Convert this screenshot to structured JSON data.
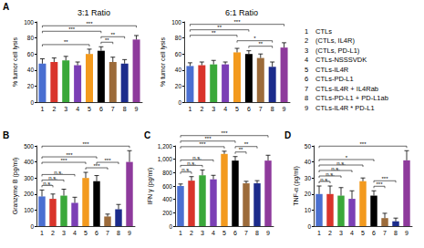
{
  "chart_data": [
    {
      "type": "bar",
      "title": "3:1 Ratio",
      "y_label": "% tumor cell lysis",
      "categories": [
        "1",
        "2",
        "3",
        "4",
        "5",
        "6",
        "7",
        "8",
        "9"
      ],
      "values": [
        48,
        50,
        52,
        46,
        60,
        64,
        50,
        48,
        78
      ],
      "errors": [
        6,
        5,
        5,
        4,
        6,
        5,
        6,
        5,
        5
      ],
      "colors": [
        "#4a6fd1",
        "#d9342b",
        "#3aa83a",
        "#7b3fb5",
        "#f39a1e",
        "#000000",
        "#9c6b3a",
        "#1c2c8c",
        "#8e3a9c"
      ],
      "ylim": [
        0,
        100
      ],
      "yticks": [
        0,
        20,
        40,
        60,
        80,
        100
      ],
      "grid": false,
      "data_labels": false,
      "brackets": [
        {
          "from": "6",
          "to": "7",
          "label": "**"
        },
        {
          "from": "6",
          "to": "8",
          "label": "**"
        },
        {
          "from": "1",
          "to": "5",
          "label": "**"
        },
        {
          "from": "1",
          "to": "6",
          "label": "***"
        },
        {
          "from": "1",
          "to": "9",
          "label": "***"
        }
      ]
    },
    {
      "type": "bar",
      "title": "6:1 Ratio",
      "y_label": "% tumor cell lysis",
      "categories": [
        "1",
        "2",
        "3",
        "4",
        "5",
        "6",
        "7",
        "8",
        "9"
      ],
      "values": [
        45,
        46,
        47,
        47,
        62,
        60,
        55,
        44,
        68
      ],
      "errors": [
        4,
        4,
        5,
        3,
        5,
        4,
        5,
        6,
        6
      ],
      "colors": [
        "#4a6fd1",
        "#d9342b",
        "#3aa83a",
        "#7b3fb5",
        "#f39a1e",
        "#000000",
        "#9c6b3a",
        "#1c2c8c",
        "#8e3a9c"
      ],
      "ylim": [
        0,
        100
      ],
      "yticks": [
        0,
        20,
        40,
        60,
        80,
        100
      ],
      "grid": false,
      "data_labels": false,
      "brackets": [
        {
          "from": "6",
          "to": "8",
          "label": "**"
        },
        {
          "from": "5",
          "to": "8",
          "label": "*"
        },
        {
          "from": "1",
          "to": "5",
          "label": "**"
        },
        {
          "from": "1",
          "to": "6",
          "label": "**"
        },
        {
          "from": "1",
          "to": "9",
          "label": "***"
        }
      ]
    },
    {
      "type": "bar",
      "y_label": "Granzyme B (pg/ml)",
      "categories": [
        "1",
        "2",
        "3",
        "4",
        "5",
        "6",
        "7",
        "8",
        "9"
      ],
      "values": [
        185,
        170,
        190,
        145,
        300,
        280,
        60,
        105,
        400
      ],
      "errors": [
        40,
        30,
        40,
        35,
        35,
        35,
        15,
        30,
        70
      ],
      "colors": [
        "#4a6fd1",
        "#d9342b",
        "#3aa83a",
        "#7b3fb5",
        "#f39a1e",
        "#000000",
        "#9c6b3a",
        "#1c2c8c",
        "#8e3a9c"
      ],
      "ylim": [
        0,
        500
      ],
      "yticks": [
        0,
        100,
        200,
        300,
        400,
        500
      ],
      "grid": false,
      "data_labels": false,
      "brackets": [
        {
          "from": "1",
          "to": "2",
          "label": "n.s."
        },
        {
          "from": "1",
          "to": "3",
          "label": "n.s."
        },
        {
          "from": "5",
          "to": "7",
          "label": "***"
        },
        {
          "from": "6",
          "to": "8",
          "label": "***"
        },
        {
          "from": "1",
          "to": "4",
          "label": "n.s."
        },
        {
          "from": "1",
          "to": "5",
          "label": "***"
        },
        {
          "from": "1",
          "to": "6",
          "label": "***"
        },
        {
          "from": "1",
          "to": "9",
          "label": "***"
        }
      ]
    },
    {
      "type": "bar",
      "y_label": "IFN γ (pg/ml)",
      "categories": [
        "1",
        "2",
        "3",
        "4",
        "5",
        "6",
        "7",
        "8",
        "9"
      ],
      "values": [
        600,
        680,
        760,
        700,
        1080,
        980,
        640,
        640,
        980
      ],
      "errors": [
        30,
        60,
        80,
        60,
        40,
        60,
        30,
        40,
        80
      ],
      "colors": [
        "#4a6fd1",
        "#d9342b",
        "#3aa83a",
        "#7b3fb5",
        "#f39a1e",
        "#000000",
        "#9c6b3a",
        "#1c2c8c",
        "#8e3a9c"
      ],
      "ylim": [
        0,
        1200
      ],
      "yticks": [
        0,
        200,
        400,
        600,
        800,
        1000,
        1200
      ],
      "grid": false,
      "data_labels": false,
      "brackets": [
        {
          "from": "1",
          "to": "2",
          "label": "n.s."
        },
        {
          "from": "6",
          "to": "7",
          "label": "**"
        },
        {
          "from": "1",
          "to": "3",
          "label": "n.s."
        },
        {
          "from": "6",
          "to": "8",
          "label": "**"
        },
        {
          "from": "1",
          "to": "4",
          "label": "n.s."
        },
        {
          "from": "1",
          "to": "5",
          "label": "***"
        },
        {
          "from": "1",
          "to": "6",
          "label": "***"
        },
        {
          "from": "1",
          "to": "9",
          "label": "***"
        }
      ]
    },
    {
      "type": "bar",
      "y_label": "TNF-α (pg/ml)",
      "categories": [
        "1",
        "2",
        "3",
        "4",
        "5",
        "6",
        "7",
        "8",
        "9"
      ],
      "values": [
        20,
        20,
        19,
        17,
        28,
        19,
        5,
        3,
        41
      ],
      "errors": [
        5,
        5,
        5,
        5,
        2,
        3,
        3,
        2,
        6
      ],
      "colors": [
        "#4a6fd1",
        "#d9342b",
        "#3aa83a",
        "#7b3fb5",
        "#f39a1e",
        "#000000",
        "#9c6b3a",
        "#1c2c8c",
        "#8e3a9c"
      ],
      "ylim": [
        0,
        50
      ],
      "yticks": [
        0,
        10,
        20,
        30,
        40,
        50
      ],
      "grid": false,
      "data_labels": false,
      "brackets": [
        {
          "from": "1",
          "to": "2",
          "label": "n.s."
        },
        {
          "from": "6",
          "to": "7",
          "label": "***"
        },
        {
          "from": "1",
          "to": "3",
          "label": "n.s."
        },
        {
          "from": "6",
          "to": "8",
          "label": "***"
        },
        {
          "from": "1",
          "to": "4",
          "label": "n.s."
        },
        {
          "from": "1",
          "to": "5",
          "label": "n.s."
        },
        {
          "from": "1",
          "to": "6",
          "label": "*"
        },
        {
          "from": "1",
          "to": "9",
          "label": "***"
        }
      ]
    }
  ],
  "panel_labels": [
    "A",
    "B",
    "C",
    "D"
  ],
  "key": [
    {
      "number": "1",
      "text": "CTLs"
    },
    {
      "number": "2",
      "text": "(CTLs, IL4R)"
    },
    {
      "number": "3",
      "text": "(CTLs, PD-L1)"
    },
    {
      "number": "4",
      "text": "CTLs-NSSSVDK"
    },
    {
      "number": "5",
      "text": "CTLs-IL4R"
    },
    {
      "number": "6",
      "text": "CTLs-PD-L1"
    },
    {
      "number": "7",
      "text": "CTLs-IL4R + IL4Rab"
    },
    {
      "number": "8",
      "text": "CTLs-PD-L1 + PD-L1ab"
    },
    {
      "number": "9",
      "text": "CTLs-IL4R * PD-L1"
    }
  ]
}
